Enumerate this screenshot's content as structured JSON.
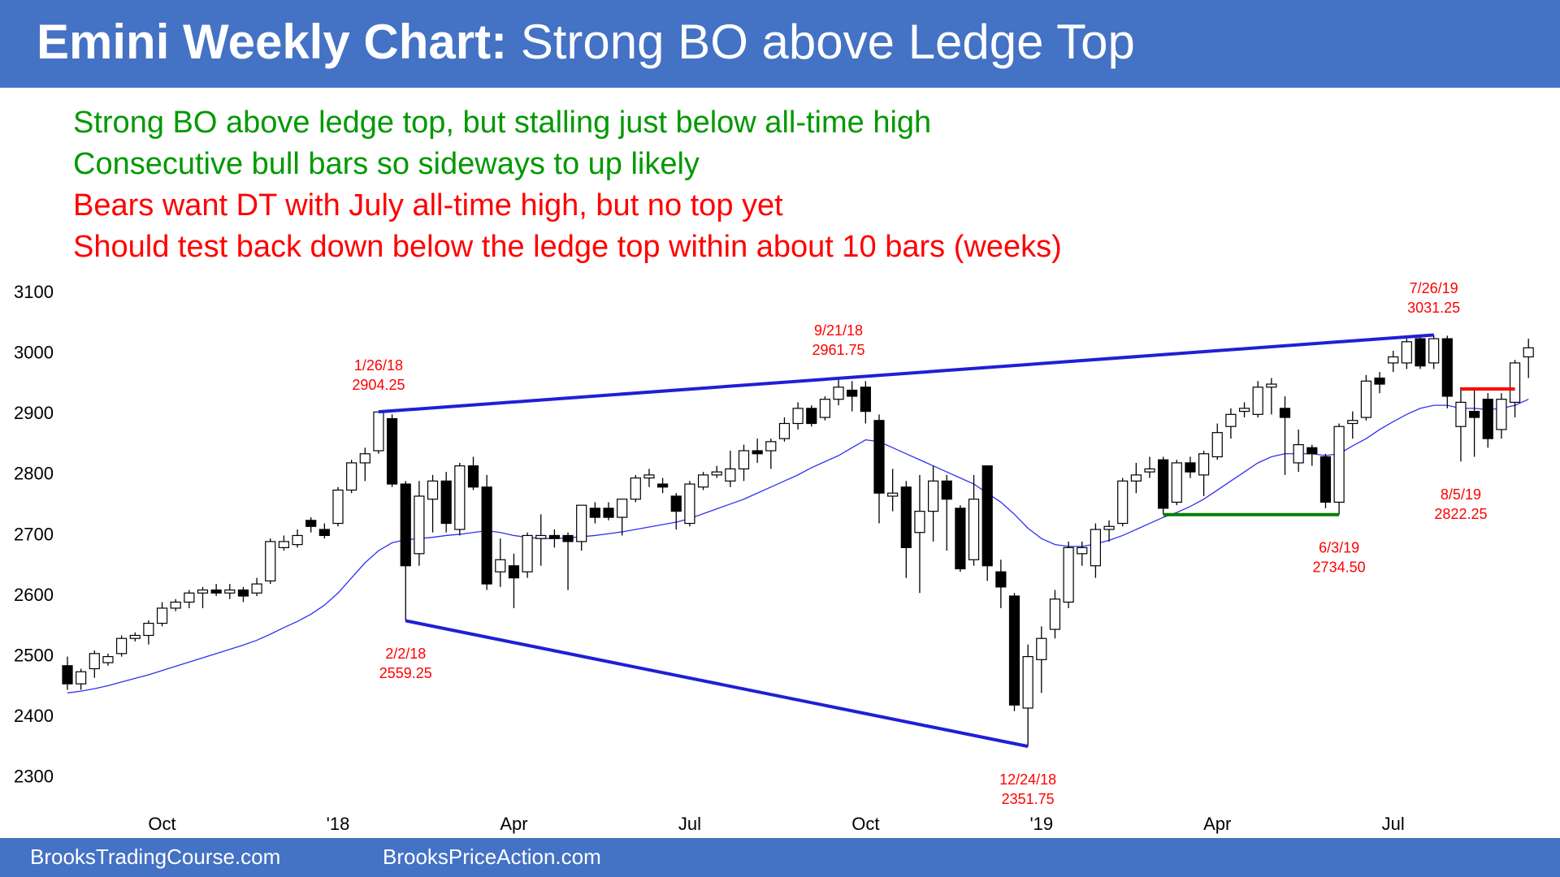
{
  "header": {
    "title_bold": "Emini Weekly Chart:",
    "title_rest": "Strong BO above Ledge Top"
  },
  "notes": [
    {
      "text": "Strong BO above ledge top, but stalling just below all-time high",
      "color": "#009900"
    },
    {
      "text": "Consecutive bull bars so sideways to up likely",
      "color": "#009900"
    },
    {
      "text": "Bears want DT with July all-time high, but no top yet",
      "color": "#ff0000"
    },
    {
      "text": "Should test back down below the ledge top within about 10 bars (weeks)",
      "color": "#ff0000"
    }
  ],
  "footer": [
    "BrooksTradingCourse.com",
    "BrooksPriceAction.com"
  ],
  "chart_data": {
    "type": "candlestick",
    "categories": [
      null,
      null,
      null,
      null,
      null,
      null,
      null,
      "Oct",
      null,
      null,
      null,
      null,
      null,
      null,
      null,
      null,
      null,
      null,
      null,
      null,
      "'18",
      null,
      null,
      null,
      null,
      null,
      null,
      null,
      null,
      null,
      null,
      null,
      null,
      "Apr",
      null,
      null,
      null,
      null,
      null,
      null,
      null,
      null,
      null,
      null,
      null,
      null,
      "Jul",
      null,
      null,
      null,
      null,
      null,
      null,
      null,
      null,
      null,
      null,
      null,
      null,
      "Oct",
      null,
      null,
      null,
      null,
      null,
      null,
      null,
      null,
      null,
      null,
      null,
      null,
      "'19",
      null,
      null,
      null,
      null,
      null,
      null,
      null,
      null,
      null,
      null,
      null,
      null,
      "Apr",
      null,
      null,
      null,
      null,
      null,
      null,
      null,
      null,
      null,
      null,
      null,
      null,
      "Jul",
      null,
      null,
      null,
      null,
      null,
      null,
      null,
      null,
      null,
      null
    ],
    "open": [
      2485,
      2455,
      2480,
      2490,
      2505,
      2530,
      2535,
      2555,
      2580,
      2590,
      2605,
      2610,
      2605,
      2610,
      2605,
      2625,
      2680,
      2685,
      2725,
      2710,
      2720,
      2775,
      2820,
      2840,
      2893,
      2785,
      2670,
      2760,
      2790,
      2710,
      2815,
      2780,
      2640,
      2650,
      2640,
      2695,
      2700,
      2700,
      2690,
      2745,
      2745,
      2730,
      2760,
      2795,
      2785,
      2765,
      2720,
      2780,
      2800,
      2790,
      2810,
      2840,
      2840,
      2860,
      2885,
      2910,
      2895,
      2925,
      2940,
      2945,
      2890,
      2765,
      2780,
      2705,
      2740,
      2790,
      2745,
      2660,
      2815,
      2640,
      2600,
      2415,
      2495,
      2545,
      2590,
      2670,
      2650,
      2710,
      2720,
      2790,
      2805,
      2825,
      2755,
      2820,
      2800,
      2830,
      2880,
      2905,
      2900,
      2945,
      2910,
      2820,
      2845,
      2830,
      2755,
      2885,
      2895,
      2960,
      2985,
      2985,
      3025,
      2985,
      3025,
      2880,
      2905,
      2925,
      2875,
      2920,
      2995
    ],
    "high": [
      2500,
      2480,
      2510,
      2505,
      2535,
      2540,
      2560,
      2590,
      2595,
      2610,
      2615,
      2620,
      2620,
      2615,
      2630,
      2695,
      2700,
      2710,
      2730,
      2720,
      2780,
      2825,
      2845,
      2904.25,
      2900,
      2790,
      2790,
      2800,
      2805,
      2820,
      2830,
      2800,
      2695,
      2670,
      2705,
      2735,
      2710,
      2705,
      2750,
      2755,
      2755,
      2760,
      2800,
      2810,
      2795,
      2770,
      2790,
      2805,
      2815,
      2840,
      2850,
      2860,
      2860,
      2895,
      2920,
      2915,
      2930,
      2961.75,
      2955,
      2955,
      2900,
      2810,
      2790,
      2800,
      2815,
      2800,
      2750,
      2800,
      2815,
      2660,
      2605,
      2520,
      2550,
      2610,
      2690,
      2690,
      2720,
      2725,
      2795,
      2820,
      2830,
      2830,
      2825,
      2830,
      2840,
      2885,
      2910,
      2920,
      2955,
      2960,
      2930,
      2875,
      2850,
      2835,
      2885,
      2905,
      2965,
      2970,
      3005,
      3025,
      3030,
      3031.25,
      3030,
      2945,
      2940,
      2935,
      2935,
      2990,
      3025
    ],
    "low": [
      2445,
      2445,
      2465,
      2485,
      2500,
      2525,
      2520,
      2550,
      2575,
      2580,
      2580,
      2600,
      2595,
      2590,
      2600,
      2620,
      2675,
      2680,
      2705,
      2695,
      2715,
      2770,
      2790,
      2835,
      2780,
      2559.25,
      2650,
      2705,
      2705,
      2700,
      2775,
      2610,
      2615,
      2580,
      2630,
      2650,
      2680,
      2610,
      2675,
      2720,
      2725,
      2700,
      2755,
      2780,
      2770,
      2710,
      2715,
      2775,
      2795,
      2780,
      2790,
      2820,
      2810,
      2855,
      2875,
      2880,
      2890,
      2915,
      2905,
      2885,
      2720,
      2740,
      2630,
      2605,
      2690,
      2675,
      2640,
      2650,
      2625,
      2580,
      2410,
      2351.75,
      2440,
      2530,
      2580,
      2650,
      2630,
      2690,
      2715,
      2770,
      2795,
      2735,
      2750,
      2795,
      2765,
      2825,
      2860,
      2895,
      2895,
      2900,
      2800,
      2805,
      2815,
      2745,
      2734.5,
      2860,
      2890,
      2935,
      2970,
      2975,
      2975,
      2975,
      2910,
      2822.25,
      2830,
      2845,
      2860,
      2895,
      2960
    ],
    "close": [
      2455,
      2475,
      2505,
      2500,
      2530,
      2535,
      2555,
      2580,
      2590,
      2605,
      2610,
      2605,
      2610,
      2600,
      2620,
      2690,
      2690,
      2700,
      2715,
      2700,
      2775,
      2820,
      2835,
      2904,
      2785,
      2650,
      2765,
      2790,
      2720,
      2815,
      2780,
      2620,
      2660,
      2630,
      2700,
      2700,
      2695,
      2690,
      2750,
      2730,
      2730,
      2760,
      2795,
      2800,
      2780,
      2740,
      2785,
      2800,
      2805,
      2810,
      2840,
      2835,
      2855,
      2885,
      2910,
      2885,
      2925,
      2945,
      2930,
      2905,
      2770,
      2770,
      2680,
      2740,
      2790,
      2760,
      2645,
      2760,
      2650,
      2615,
      2420,
      2500,
      2530,
      2595,
      2680,
      2680,
      2710,
      2715,
      2790,
      2800,
      2810,
      2745,
      2820,
      2805,
      2835,
      2870,
      2900,
      2910,
      2945,
      2950,
      2895,
      2850,
      2835,
      2755,
      2880,
      2890,
      2955,
      2950,
      2995,
      3020,
      2980,
      3025,
      2930,
      2920,
      2895,
      2860,
      2925,
      2985,
      3010
    ],
    "ma": {
      "color": "#3030ee",
      "values": [
        2440,
        2443,
        2447,
        2452,
        2458,
        2464,
        2470,
        2477,
        2484,
        2491,
        2498,
        2505,
        2512,
        2519,
        2527,
        2537,
        2548,
        2558,
        2570,
        2585,
        2605,
        2630,
        2655,
        2675,
        2688,
        2693,
        2695,
        2697,
        2700,
        2702,
        2705,
        2708,
        2705,
        2700,
        2697,
        2695,
        2695,
        2696,
        2698,
        2700,
        2703,
        2706,
        2710,
        2714,
        2718,
        2722,
        2728,
        2736,
        2744,
        2752,
        2760,
        2770,
        2780,
        2790,
        2800,
        2812,
        2822,
        2832,
        2845,
        2858,
        2855,
        2845,
        2835,
        2825,
        2815,
        2805,
        2795,
        2785,
        2770,
        2755,
        2735,
        2712,
        2695,
        2685,
        2682,
        2682,
        2686,
        2692,
        2700,
        2710,
        2720,
        2730,
        2738,
        2748,
        2760,
        2775,
        2790,
        2805,
        2820,
        2830,
        2835,
        2835,
        2835,
        2832,
        2835,
        2848,
        2860,
        2875,
        2888,
        2900,
        2910,
        2915,
        2915,
        2910,
        2910,
        2908,
        2910,
        2915,
        2925
      ]
    },
    "bull_color": "#ffffff",
    "bear_color": "#000000",
    "ylim": [
      2250,
      3115
    ],
    "yticks": [
      2300,
      2400,
      2500,
      2600,
      2700,
      2800,
      2900,
      3000,
      3100
    ],
    "lines": [
      {
        "color": "#1f1fd6",
        "points": [
          [
            23,
            2904.25
          ],
          [
            101,
            3031.25
          ]
        ]
      },
      {
        "color": "#1f1fd6",
        "points": [
          [
            25,
            2559.25
          ],
          [
            71,
            2351.75
          ]
        ]
      },
      {
        "color": "#008000",
        "points": [
          [
            81,
            2734.5
          ],
          [
            94,
            2734.5
          ]
        ]
      },
      {
        "color": "#ff0000",
        "points": [
          [
            103,
            2942
          ],
          [
            107,
            2942
          ]
        ]
      }
    ],
    "annotation_color": "#ff0000",
    "annotations": [
      {
        "date": "1/26/18",
        "value": 2904.25
      },
      {
        "date": "2/2/18",
        "value": 2559.25
      },
      {
        "date": "9/21/18",
        "value": 2961.75
      },
      {
        "date": "12/24/18",
        "value": 2351.75
      },
      {
        "date": "6/3/19",
        "value": 2734.5,
        "value_label": "2734.50"
      },
      {
        "date": "7/26/19",
        "value": 3031.25
      },
      {
        "date": "8/5/19",
        "value": 2822.25
      }
    ]
  }
}
